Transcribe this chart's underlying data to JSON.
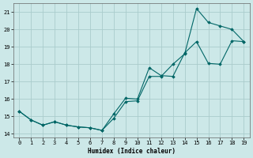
{
  "xlabel": "Humidex (Indice chaleur)",
  "background_color": "#cce8e8",
  "grid_color": "#aacccc",
  "line_color": "#006666",
  "xlim": [
    -0.5,
    19.5
  ],
  "ylim": [
    13.8,
    21.5
  ],
  "xticks": [
    0,
    1,
    2,
    3,
    4,
    5,
    6,
    7,
    8,
    9,
    10,
    11,
    12,
    13,
    14,
    15,
    16,
    17,
    18,
    19
  ],
  "yticks": [
    14,
    15,
    16,
    17,
    18,
    19,
    20,
    21
  ],
  "line1_x": [
    0,
    1,
    2,
    3,
    4,
    5,
    6,
    7,
    8,
    9,
    10,
    11,
    12,
    13,
    14,
    15,
    16,
    17,
    18,
    19
  ],
  "line1_y": [
    15.3,
    14.8,
    14.5,
    14.7,
    14.5,
    14.4,
    14.35,
    14.2,
    14.9,
    15.85,
    15.9,
    17.3,
    17.3,
    18.0,
    18.6,
    21.2,
    20.4,
    20.2,
    20.0,
    19.3
  ],
  "line2_x": [
    0,
    1,
    2,
    3,
    4,
    5,
    6,
    7,
    8,
    9,
    10,
    11,
    12,
    13,
    14,
    15,
    16,
    17,
    18,
    19
  ],
  "line2_y": [
    15.3,
    14.8,
    14.5,
    14.7,
    14.5,
    14.4,
    14.35,
    14.2,
    15.15,
    16.05,
    16.0,
    17.8,
    17.35,
    17.3,
    18.65,
    19.3,
    18.05,
    18.0,
    19.35,
    19.3
  ]
}
